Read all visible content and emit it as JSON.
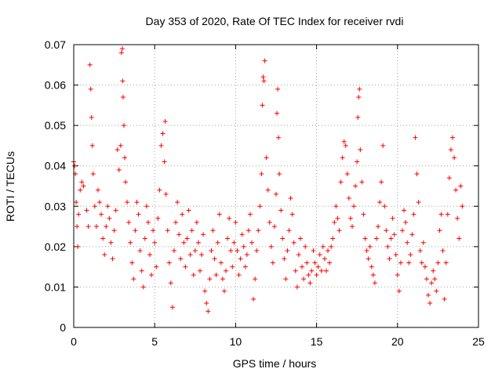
{
  "chart_data": {
    "type": "scatter",
    "title": "Day 353 of 2020, Rate Of TEC Index for receiver rvdi",
    "xlabel": "GPS time / hours",
    "ylabel": "ROTI / TECUs",
    "xlim": [
      0,
      25
    ],
    "ylim": [
      0,
      0.07
    ],
    "xticks": [
      "0",
      "5",
      "10",
      "15",
      "20",
      "25"
    ],
    "yticks": [
      "0",
      "0.01",
      "0.02",
      "0.03",
      "0.04",
      "0.05",
      "0.06",
      "0.07"
    ],
    "grid": true,
    "marker": "+",
    "marker_color": "#ff0000",
    "series": [
      {
        "points": [
          [
            0.0,
            0.041
          ],
          [
            0.05,
            0.04
          ],
          [
            0.1,
            0.038
          ],
          [
            0.15,
            0.031
          ],
          [
            0.2,
            0.025
          ],
          [
            0.25,
            0.02
          ],
          [
            0.3,
            0.028
          ],
          [
            0.4,
            0.034
          ],
          [
            0.5,
            0.036
          ],
          [
            0.6,
            0.035
          ],
          [
            0.8,
            0.029
          ],
          [
            0.9,
            0.025
          ],
          [
            1.0,
            0.065
          ],
          [
            1.05,
            0.059
          ],
          [
            1.1,
            0.052
          ],
          [
            1.15,
            0.045
          ],
          [
            1.2,
            0.038
          ],
          [
            1.3,
            0.03
          ],
          [
            1.4,
            0.025
          ],
          [
            1.5,
            0.034
          ],
          [
            1.6,
            0.031
          ],
          [
            1.7,
            0.028
          ],
          [
            1.8,
            0.022
          ],
          [
            1.9,
            0.018
          ],
          [
            2.0,
            0.025
          ],
          [
            2.1,
            0.03
          ],
          [
            2.2,
            0.027
          ],
          [
            2.3,
            0.021
          ],
          [
            2.4,
            0.017
          ],
          [
            2.5,
            0.024
          ],
          [
            2.6,
            0.029
          ],
          [
            2.7,
            0.044
          ],
          [
            2.8,
            0.039
          ],
          [
            2.9,
            0.045
          ],
          [
            2.95,
            0.068
          ],
          [
            3.0,
            0.069
          ],
          [
            3.02,
            0.061
          ],
          [
            3.05,
            0.057
          ],
          [
            3.1,
            0.05
          ],
          [
            3.15,
            0.042
          ],
          [
            3.2,
            0.036
          ],
          [
            3.3,
            0.031
          ],
          [
            3.4,
            0.026
          ],
          [
            3.5,
            0.021
          ],
          [
            3.6,
            0.016
          ],
          [
            3.7,
            0.012
          ],
          [
            3.8,
            0.024
          ],
          [
            3.9,
            0.031
          ],
          [
            4.0,
            0.028
          ],
          [
            4.1,
            0.019
          ],
          [
            4.2,
            0.014
          ],
          [
            4.3,
            0.01
          ],
          [
            4.4,
            0.022
          ],
          [
            4.5,
            0.03
          ],
          [
            4.6,
            0.026
          ],
          [
            4.7,
            0.018
          ],
          [
            4.8,
            0.013
          ],
          [
            4.9,
            0.024
          ],
          [
            5.0,
            0.021
          ],
          [
            5.1,
            0.015
          ],
          [
            5.2,
            0.027
          ],
          [
            5.3,
            0.034
          ],
          [
            5.4,
            0.045
          ],
          [
            5.5,
            0.048
          ],
          [
            5.6,
            0.041
          ],
          [
            5.65,
            0.051
          ],
          [
            5.7,
            0.033
          ],
          [
            5.8,
            0.024
          ],
          [
            5.9,
            0.016
          ],
          [
            6.0,
            0.011
          ],
          [
            6.1,
            0.005
          ],
          [
            6.2,
            0.019
          ],
          [
            6.3,
            0.026
          ],
          [
            6.4,
            0.031
          ],
          [
            6.5,
            0.023
          ],
          [
            6.6,
            0.017
          ],
          [
            6.7,
            0.028
          ],
          [
            6.8,
            0.021
          ],
          [
            6.9,
            0.015
          ],
          [
            7.0,
            0.022
          ],
          [
            7.1,
            0.029
          ],
          [
            7.2,
            0.018
          ],
          [
            7.3,
            0.024
          ],
          [
            7.4,
            0.013
          ],
          [
            7.5,
            0.019
          ],
          [
            7.6,
            0.026
          ],
          [
            7.7,
            0.021
          ],
          [
            7.8,
            0.014
          ],
          [
            7.9,
            0.018
          ],
          [
            8.0,
            0.023
          ],
          [
            8.1,
            0.009
          ],
          [
            8.2,
            0.006
          ],
          [
            8.3,
            0.004
          ],
          [
            8.4,
            0.012
          ],
          [
            8.5,
            0.019
          ],
          [
            8.6,
            0.024
          ],
          [
            8.7,
            0.017
          ],
          [
            8.8,
            0.013
          ],
          [
            8.9,
            0.021
          ],
          [
            9.0,
            0.028
          ],
          [
            9.1,
            0.016
          ],
          [
            9.2,
            0.012
          ],
          [
            9.3,
            0.009
          ],
          [
            9.4,
            0.014
          ],
          [
            9.5,
            0.022
          ],
          [
            9.6,
            0.027
          ],
          [
            9.7,
            0.019
          ],
          [
            9.8,
            0.015
          ],
          [
            9.9,
            0.021
          ],
          [
            10.0,
            0.026
          ],
          [
            10.1,
            0.019
          ],
          [
            10.2,
            0.013
          ],
          [
            10.3,
            0.017
          ],
          [
            10.4,
            0.023
          ],
          [
            10.5,
            0.02
          ],
          [
            10.6,
            0.015
          ],
          [
            10.7,
            0.018
          ],
          [
            10.8,
            0.024
          ],
          [
            10.9,
            0.028
          ],
          [
            11.0,
            0.021
          ],
          [
            11.1,
            0.007
          ],
          [
            11.2,
            0.012
          ],
          [
            11.3,
            0.019
          ],
          [
            11.4,
            0.024
          ],
          [
            11.5,
            0.03
          ],
          [
            11.6,
            0.038
          ],
          [
            11.65,
            0.055
          ],
          [
            11.7,
            0.062
          ],
          [
            11.75,
            0.061
          ],
          [
            11.8,
            0.066
          ],
          [
            11.9,
            0.042
          ],
          [
            12.0,
            0.034
          ],
          [
            12.1,
            0.026
          ],
          [
            12.2,
            0.02
          ],
          [
            12.3,
            0.016
          ],
          [
            12.4,
            0.025
          ],
          [
            12.5,
            0.033
          ],
          [
            12.55,
            0.053
          ],
          [
            12.6,
            0.059
          ],
          [
            12.65,
            0.047
          ],
          [
            12.7,
            0.038
          ],
          [
            12.8,
            0.029
          ],
          [
            12.9,
            0.022
          ],
          [
            13.0,
            0.017
          ],
          [
            13.1,
            0.012
          ],
          [
            13.2,
            0.019
          ],
          [
            13.3,
            0.024
          ],
          [
            13.4,
            0.032
          ],
          [
            13.5,
            0.028
          ],
          [
            13.6,
            0.021
          ],
          [
            13.7,
            0.014
          ],
          [
            13.8,
            0.01
          ],
          [
            13.9,
            0.018
          ],
          [
            14.0,
            0.022
          ],
          [
            14.1,
            0.015
          ],
          [
            14.2,
            0.012
          ],
          [
            14.3,
            0.02
          ],
          [
            14.4,
            0.016
          ],
          [
            14.5,
            0.013
          ],
          [
            14.6,
            0.011
          ],
          [
            14.7,
            0.014
          ],
          [
            14.8,
            0.019
          ],
          [
            14.9,
            0.016
          ],
          [
            15.0,
            0.013
          ],
          [
            15.1,
            0.015
          ],
          [
            15.2,
            0.018
          ],
          [
            15.3,
            0.014
          ],
          [
            15.4,
            0.02
          ],
          [
            15.5,
            0.017
          ],
          [
            15.6,
            0.014
          ],
          [
            15.7,
            0.019
          ],
          [
            15.8,
            0.016
          ],
          [
            15.9,
            0.02
          ],
          [
            16.0,
            0.022
          ],
          [
            16.1,
            0.026
          ],
          [
            16.2,
            0.03
          ],
          [
            16.3,
            0.027
          ],
          [
            16.4,
            0.024
          ],
          [
            16.5,
            0.036
          ],
          [
            16.6,
            0.042
          ],
          [
            16.7,
            0.046
          ],
          [
            16.8,
            0.045
          ],
          [
            16.9,
            0.038
          ],
          [
            17.0,
            0.032
          ],
          [
            17.1,
            0.027
          ],
          [
            17.2,
            0.025
          ],
          [
            17.3,
            0.03
          ],
          [
            17.4,
            0.035
          ],
          [
            17.5,
            0.041
          ],
          [
            17.55,
            0.052
          ],
          [
            17.6,
            0.057
          ],
          [
            17.65,
            0.059
          ],
          [
            17.7,
            0.044
          ],
          [
            17.8,
            0.036
          ],
          [
            17.9,
            0.028
          ],
          [
            18.0,
            0.022
          ],
          [
            18.1,
            0.019
          ],
          [
            18.2,
            0.017
          ],
          [
            18.3,
            0.02
          ],
          [
            18.4,
            0.015
          ],
          [
            18.5,
            0.013
          ],
          [
            18.6,
            0.011
          ],
          [
            18.7,
            0.022
          ],
          [
            18.8,
            0.025
          ],
          [
            18.9,
            0.031
          ],
          [
            19.0,
            0.036
          ],
          [
            19.1,
            0.045
          ],
          [
            19.2,
            0.03
          ],
          [
            19.3,
            0.024
          ],
          [
            19.4,
            0.02
          ],
          [
            19.5,
            0.017
          ],
          [
            19.6,
            0.022
          ],
          [
            19.7,
            0.027
          ],
          [
            19.8,
            0.023
          ],
          [
            19.9,
            0.018
          ],
          [
            20.0,
            0.013
          ],
          [
            20.1,
            0.009
          ],
          [
            20.2,
            0.016
          ],
          [
            20.3,
            0.024
          ],
          [
            20.4,
            0.029
          ],
          [
            20.5,
            0.026
          ],
          [
            20.6,
            0.021
          ],
          [
            20.7,
            0.016
          ],
          [
            20.8,
            0.018
          ],
          [
            20.9,
            0.023
          ],
          [
            21.0,
            0.028
          ],
          [
            21.1,
            0.047
          ],
          [
            21.2,
            0.038
          ],
          [
            21.3,
            0.031
          ],
          [
            21.4,
            0.019
          ],
          [
            21.5,
            0.016
          ],
          [
            21.6,
            0.021
          ],
          [
            21.7,
            0.015
          ],
          [
            21.8,
            0.012
          ],
          [
            21.9,
            0.008
          ],
          [
            22.0,
            0.006
          ],
          [
            22.1,
            0.011
          ],
          [
            22.2,
            0.014
          ],
          [
            22.3,
            0.012
          ],
          [
            22.4,
            0.009
          ],
          [
            22.5,
            0.016
          ],
          [
            22.6,
            0.024
          ],
          [
            22.7,
            0.028
          ],
          [
            22.8,
            0.019
          ],
          [
            22.9,
            0.007
          ],
          [
            23.0,
            0.016
          ],
          [
            23.1,
            0.028
          ],
          [
            23.2,
            0.037
          ],
          [
            23.3,
            0.044
          ],
          [
            23.4,
            0.047
          ],
          [
            23.5,
            0.042
          ],
          [
            23.6,
            0.034
          ],
          [
            23.7,
            0.027
          ],
          [
            23.8,
            0.022
          ],
          [
            23.9,
            0.035
          ],
          [
            24.0,
            0.03
          ]
        ]
      }
    ]
  }
}
